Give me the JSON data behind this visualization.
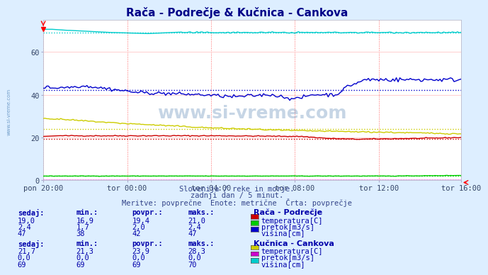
{
  "title": "Rača - Podrečje & Kučnica - Cankova",
  "bg_color": "#ddeeff",
  "plot_bg_color": "#ffffff",
  "xlabel_ticks": [
    "pon 20:00",
    "tor 00:00",
    "tor 04:00",
    "tor 08:00",
    "tor 12:00",
    "tor 16:00"
  ],
  "tick_positions": [
    0,
    48,
    96,
    144,
    192,
    239
  ],
  "n_points": 240,
  "ylim": [
    0,
    75
  ],
  "yticks": [
    0,
    20,
    40,
    60
  ],
  "lines": {
    "raca_temp": {
      "color": "#cc0000",
      "avg": 19.4
    },
    "raca_pretok": {
      "color": "#00cc00",
      "avg": 2.0
    },
    "raca_visina": {
      "color": "#0000cc",
      "avg": 42.0
    },
    "kucnica_temp": {
      "color": "#cccc00",
      "avg": 23.9
    },
    "kucnica_pretok": {
      "color": "#cc00cc",
      "avg": 0.0
    },
    "kucnica_visina": {
      "color": "#00cccc",
      "avg": 69.0
    }
  },
  "subtitle1": "Slovenija / reke in morje.",
  "subtitle2": "zadnji dan / 5 minut.",
  "subtitle3": "Meritve: povprečne  Enote: metrične  Črta: povprečje",
  "table_headers": [
    "sedaj:",
    "min.:",
    "povpr.:",
    "maks.:"
  ],
  "raca_label": "Rača - Podrečje",
  "kucnica_label": "Kučnica - Cankova",
  "raca_rows": [
    {
      "label": "temperatura[C]",
      "color": "#cc0000",
      "sedaj": "19,0",
      "min": "16,9",
      "povpr": "19,4",
      "maks": "21,0"
    },
    {
      "label": "pretok[m3/s]",
      "color": "#00cc00",
      "sedaj": "2,4",
      "min": "1,7",
      "povpr": "2,0",
      "maks": "2,4"
    },
    {
      "label": "višina[cm]",
      "color": "#0000cc",
      "sedaj": "47",
      "min": "38",
      "povpr": "42",
      "maks": "47"
    }
  ],
  "kucnica_rows": [
    {
      "label": "temperatura[C]",
      "color": "#cccc00",
      "sedaj": "21,7",
      "min": "21,3",
      "povpr": "23,9",
      "maks": "28,3"
    },
    {
      "label": "pretok[m3/s]",
      "color": "#cc00cc",
      "sedaj": "0,0",
      "min": "0,0",
      "povpr": "0,0",
      "maks": "0,0"
    },
    {
      "label": "višina[cm]",
      "color": "#00cccc",
      "sedaj": "69",
      "min": "69",
      "povpr": "69",
      "maks": "70"
    }
  ],
  "watermark": "www.si-vreme.com",
  "watermark_color": "#4477aa",
  "title_color": "#000088",
  "text_color": "#0000aa",
  "label_color": "#4488cc"
}
